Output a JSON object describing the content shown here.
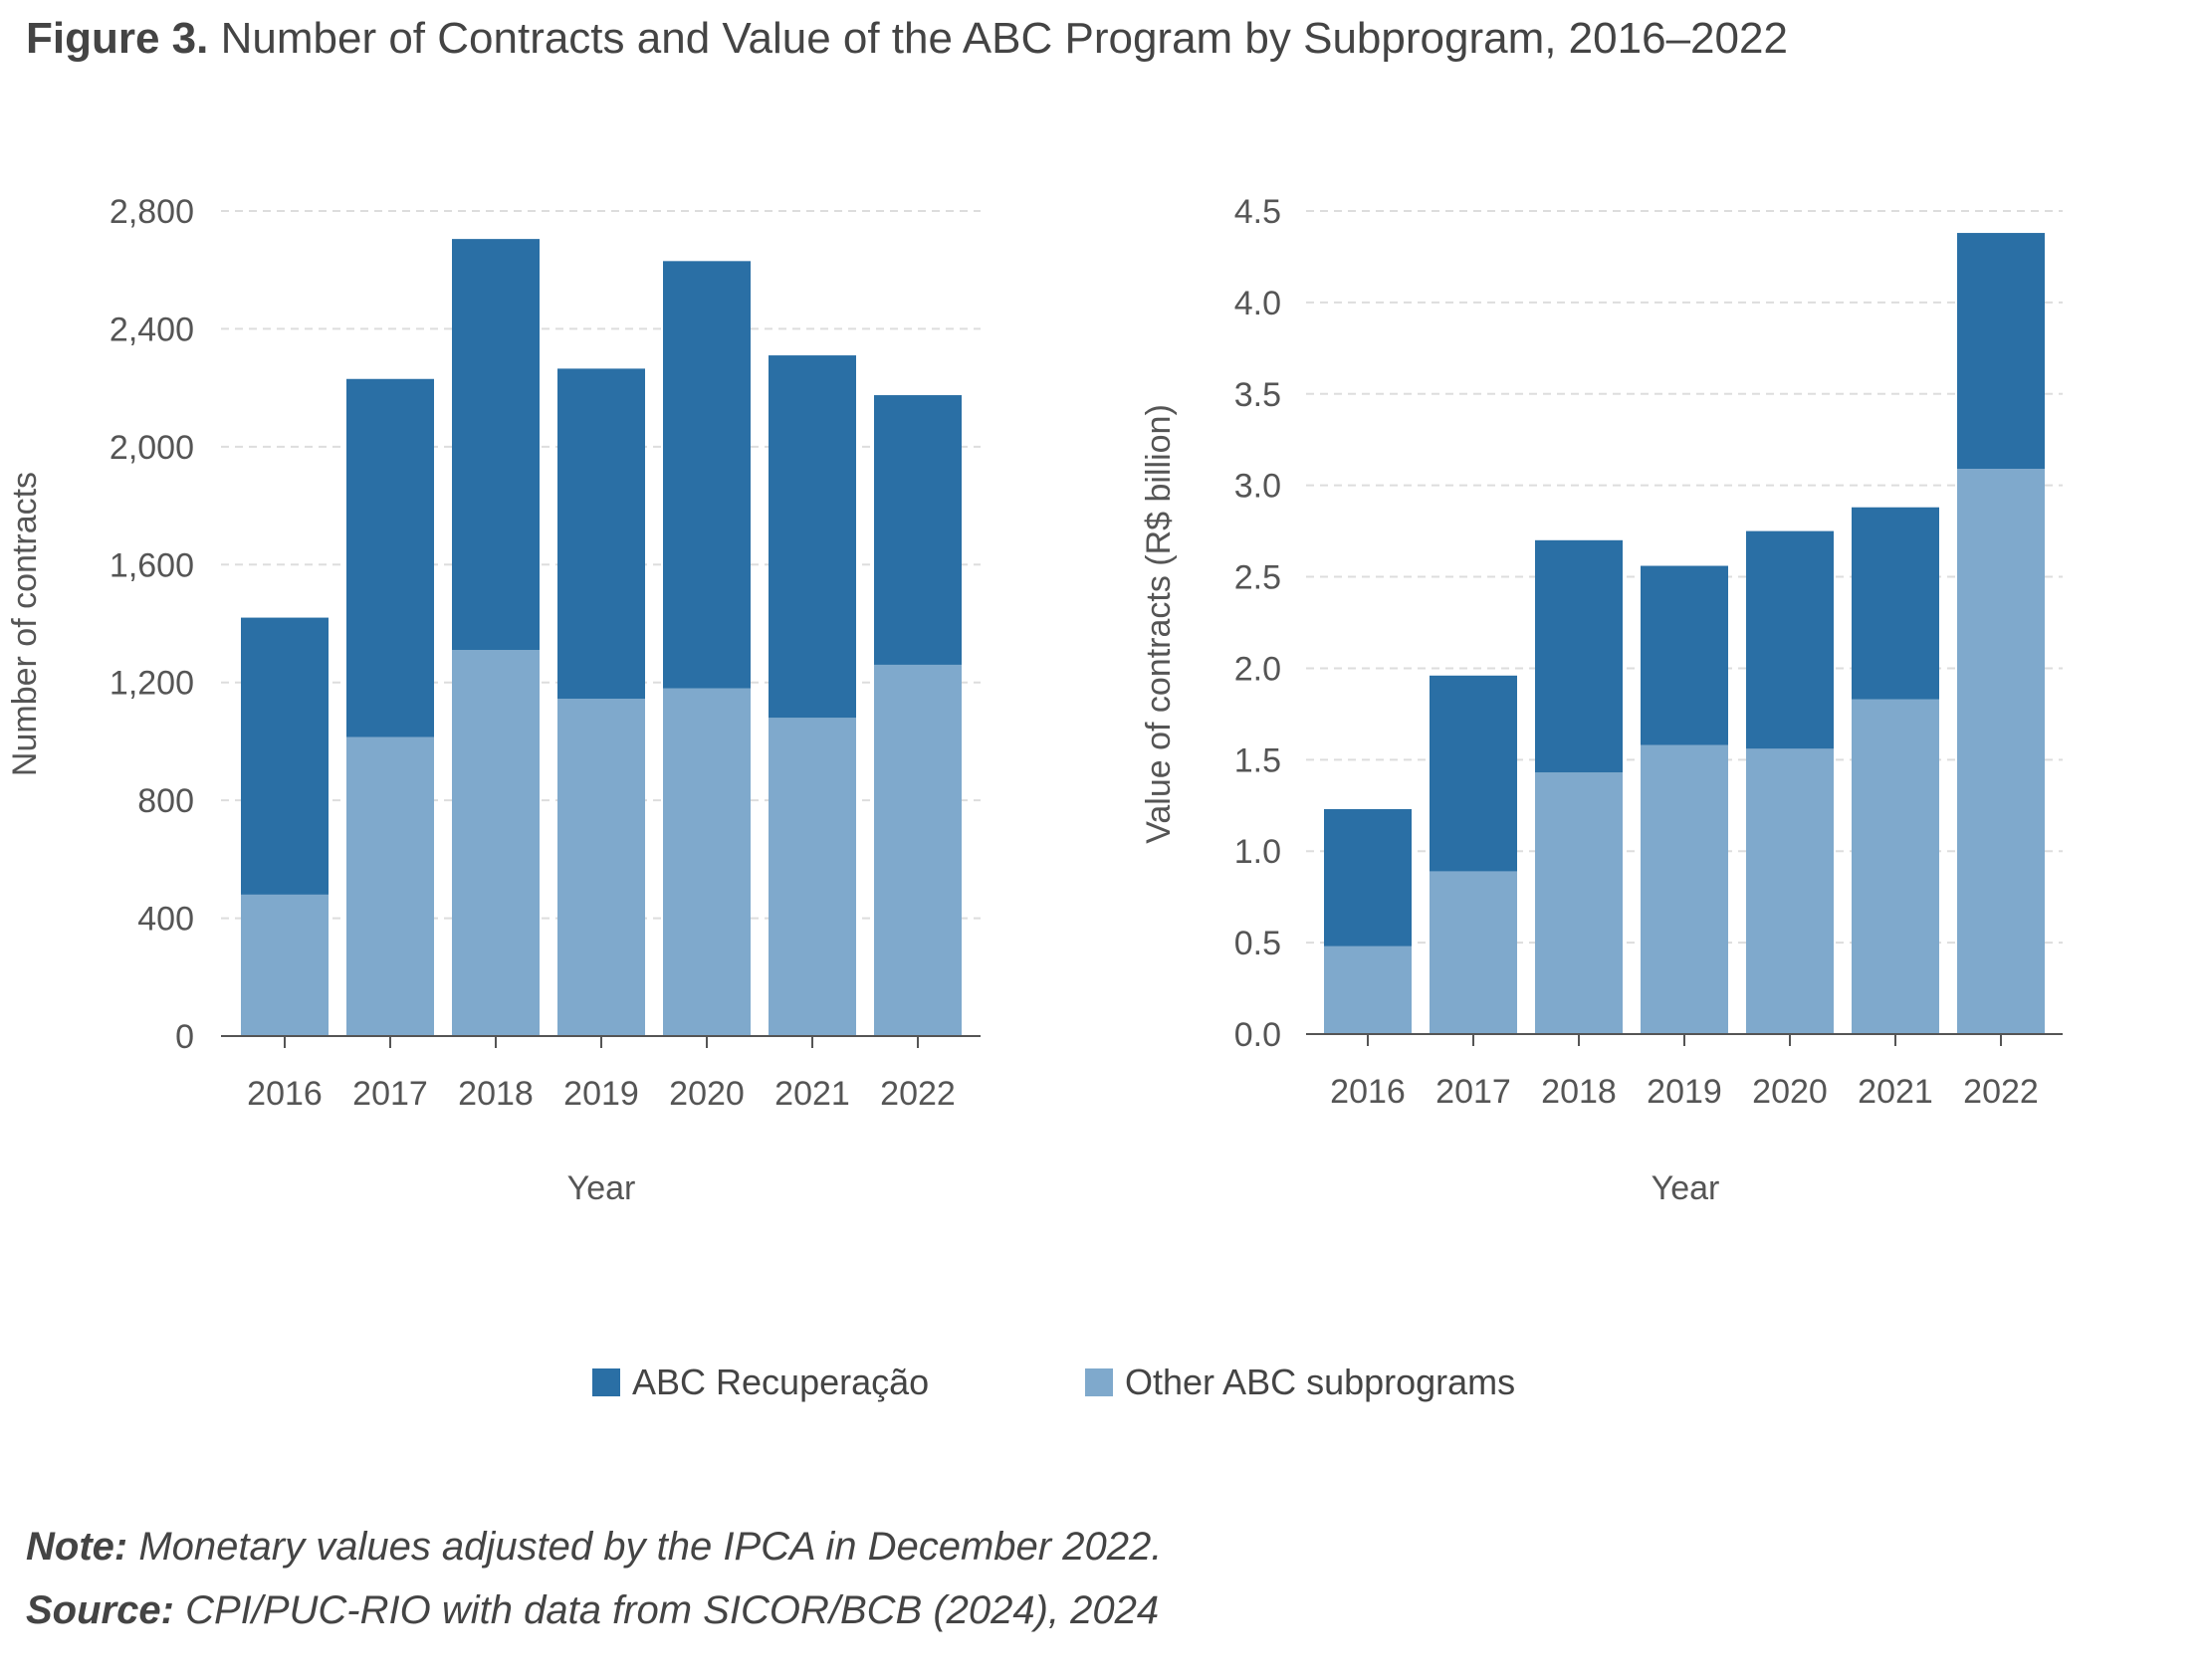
{
  "figure": {
    "title_bold": "Figure 3.",
    "title_text": "Number of Contracts and Value of the ABC Program by Subprogram, 2016–2022"
  },
  "legend": {
    "items": [
      {
        "label": "ABC Recuperação",
        "color": "#2a6fa5"
      },
      {
        "label": "Other ABC subprograms",
        "color": "#7fa9cc"
      }
    ]
  },
  "notes": {
    "note_label": "Note:",
    "note_text": "Monetary values adjusted by the IPCA in December 2022.",
    "source_label": "Source:",
    "source_text": "CPI/PUC-RIO with data from SICOR/BCB (2024), 2024"
  },
  "chart_data": [
    {
      "type": "bar",
      "stacked": true,
      "categories": [
        "2016",
        "2017",
        "2018",
        "2019",
        "2020",
        "2021",
        "2022"
      ],
      "series": [
        {
          "name": "Other ABC subprograms",
          "color": "#7fa9cc",
          "values": [
            480,
            1015,
            1310,
            1145,
            1180,
            1080,
            1260
          ]
        },
        {
          "name": "ABC Recuperação",
          "color": "#2a6fa5",
          "values": [
            940,
            1215,
            1395,
            1120,
            1450,
            1230,
            915
          ]
        }
      ],
      "xlabel": "Year",
      "ylabel": "Number of contracts",
      "ylim": [
        0,
        2800
      ],
      "yticks": [
        "0",
        "400",
        "800",
        "1,200",
        "1,600",
        "2,000",
        "2,400",
        "2,800"
      ],
      "grid": true
    },
    {
      "type": "bar",
      "stacked": true,
      "categories": [
        "2016",
        "2017",
        "2018",
        "2019",
        "2020",
        "2021",
        "2022"
      ],
      "series": [
        {
          "name": "Other ABC subprograms",
          "color": "#7fa9cc",
          "values": [
            0.48,
            0.89,
            1.43,
            1.58,
            1.56,
            1.83,
            3.09
          ]
        },
        {
          "name": "ABC Recuperação",
          "color": "#2a6fa5",
          "values": [
            0.75,
            1.07,
            1.27,
            0.98,
            1.19,
            1.05,
            1.29
          ]
        }
      ],
      "xlabel": "Year",
      "ylabel": "Value of contracts (R$ billion)",
      "ylim": [
        0,
        4.5
      ],
      "yticks": [
        "0.0",
        "0.5",
        "1.0",
        "1.5",
        "2.0",
        "2.5",
        "3.0",
        "3.5",
        "4.0",
        "4.5"
      ],
      "grid": true
    }
  ]
}
